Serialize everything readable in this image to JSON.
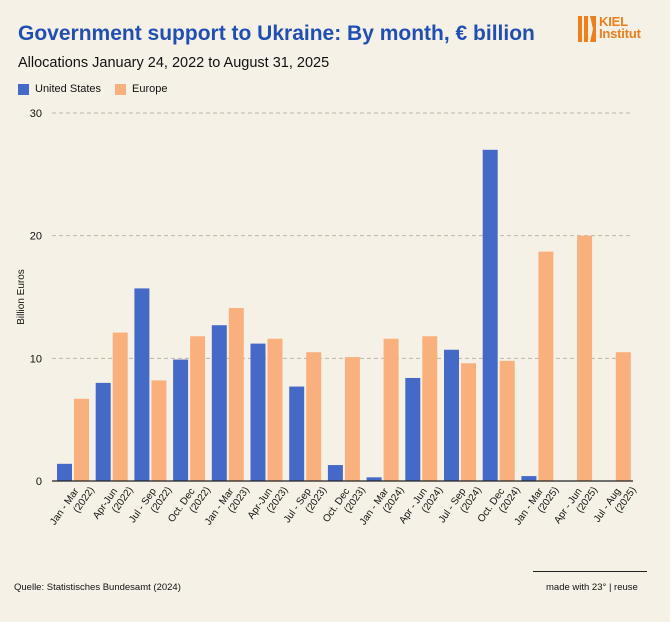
{
  "header": {
    "title": "Government support to Ukraine: By month, € billion",
    "subtitle": "Allocations January 24, 2022 to August 31, 2025"
  },
  "logo": {
    "line1": "KIEL",
    "line2": "Institut"
  },
  "footer": {
    "source": "Quelle: Statistisches Bundesamt (2024)",
    "credit": "made with 23° | reuse"
  },
  "colors": {
    "us": "#4569c7",
    "europe": "#f9b07c",
    "title": "#1f4fb4",
    "logo": "#f07e1b"
  },
  "chart_data": {
    "type": "bar",
    "ylabel": "Billion Euros",
    "xlabel": "",
    "ylim": [
      0,
      30
    ],
    "yticks": [
      0,
      10,
      20,
      30
    ],
    "grid": true,
    "legend_position": "top-left",
    "categories": [
      "Jan - Mar (2022)",
      "Apr-Jun (2022)",
      "Jul - Sep (2022)",
      "Oct. Dec (2022)",
      "Jan - Mar (2023)",
      "Apr-Jun (2023)",
      "Jul - Sep (2023)",
      "Oct. Dec (2023)",
      "Jan - Mar (2024)",
      "Apr - Jun (2024)",
      "Jul - Sep (2024)",
      "Oct. Dec (2024)",
      "Jan - Mar (2025)",
      "Apr - Jun (2025)",
      "Jul - Aug (2025)"
    ],
    "series": [
      {
        "name": "United States",
        "values": [
          1.4,
          8.0,
          15.7,
          9.9,
          12.7,
          11.2,
          7.7,
          1.3,
          0.3,
          8.4,
          10.7,
          27.0,
          0.4,
          null,
          null
        ]
      },
      {
        "name": "Europe",
        "values": [
          6.7,
          12.1,
          8.2,
          11.8,
          14.1,
          11.6,
          10.5,
          10.1,
          11.6,
          11.8,
          9.6,
          9.8,
          18.7,
          20.0,
          10.5
        ]
      }
    ]
  }
}
